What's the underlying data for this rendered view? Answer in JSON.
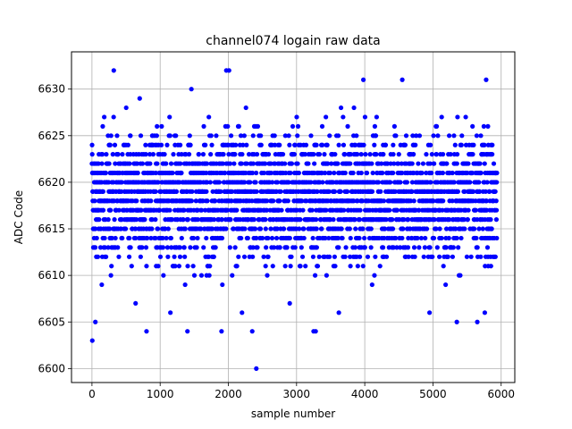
{
  "chart_data": {
    "type": "scatter",
    "title": "channel074 logain raw data",
    "xlabel": "sample number",
    "ylabel": "ADC Code",
    "xlim": [
      -300,
      6200
    ],
    "ylim": [
      6598.5,
      6634
    ],
    "xticks": [
      0,
      1000,
      2000,
      3000,
      4000,
      5000,
      6000
    ],
    "yticks": [
      6600,
      6605,
      6610,
      6615,
      6620,
      6625,
      6630
    ],
    "grid": true,
    "marker_color": "#0000ff",
    "n_samples": 5940,
    "core_range": [
      6612,
      6627
    ],
    "series": [
      {
        "values_note": "dense integer-valued samples across all x",
        "outliers": [
          {
            "x": 5,
            "y": 6603
          },
          {
            "x": 50,
            "y": 6605
          },
          {
            "x": 2410,
            "y": 6600
          },
          {
            "x": 2350,
            "y": 6604
          },
          {
            "x": 800,
            "y": 6604
          },
          {
            "x": 1400,
            "y": 6604
          },
          {
            "x": 1900,
            "y": 6604
          },
          {
            "x": 3250,
            "y": 6604
          },
          {
            "x": 3280,
            "y": 6604
          },
          {
            "x": 320,
            "y": 6632
          },
          {
            "x": 1970,
            "y": 6632
          },
          {
            "x": 2010,
            "y": 6632
          },
          {
            "x": 3980,
            "y": 6631
          },
          {
            "x": 4550,
            "y": 6631
          },
          {
            "x": 5780,
            "y": 6631
          },
          {
            "x": 5650,
            "y": 6605
          },
          {
            "x": 5350,
            "y": 6605
          },
          {
            "x": 4950,
            "y": 6606
          },
          {
            "x": 5760,
            "y": 6606
          },
          {
            "x": 1150,
            "y": 6606
          },
          {
            "x": 2200,
            "y": 6606
          },
          {
            "x": 3620,
            "y": 6606
          },
          {
            "x": 2900,
            "y": 6607
          },
          {
            "x": 640,
            "y": 6607
          }
        ]
      }
    ]
  }
}
